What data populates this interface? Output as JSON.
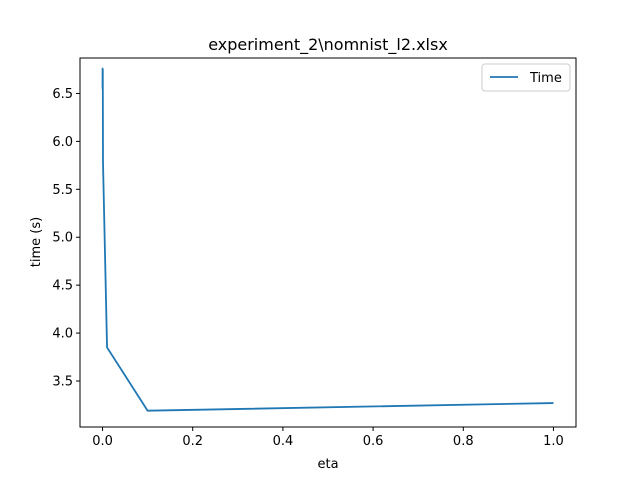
{
  "chart_data": {
    "type": "line",
    "title": "experiment_2\\nomnist_l2.xlsx",
    "xlabel": "eta",
    "ylabel": "time (s)",
    "xlim": [
      -0.05,
      1.05
    ],
    "ylim": [
      3.02,
      6.87
    ],
    "xticks": [
      0.0,
      0.2,
      0.4,
      0.6,
      0.8,
      1.0
    ],
    "xtick_labels": [
      "0.0",
      "0.2",
      "0.4",
      "0.6",
      "0.8",
      "1.0"
    ],
    "yticks": [
      3.5,
      4.0,
      4.5,
      5.0,
      5.5,
      6.0,
      6.5
    ],
    "ytick_labels": [
      "3.5",
      "4.0",
      "4.5",
      "5.0",
      "5.5",
      "6.0",
      "6.5"
    ],
    "grid": false,
    "legend": "top-right",
    "series": [
      {
        "name": "Time",
        "color": "#1f77b4",
        "x": [
          1e-05,
          0.0001,
          0.0002,
          0.0005,
          0.001,
          0.01,
          0.1,
          1.0
        ],
        "y": [
          6.55,
          6.76,
          6.58,
          6.75,
          5.78,
          3.85,
          3.19,
          3.27
        ]
      }
    ]
  }
}
